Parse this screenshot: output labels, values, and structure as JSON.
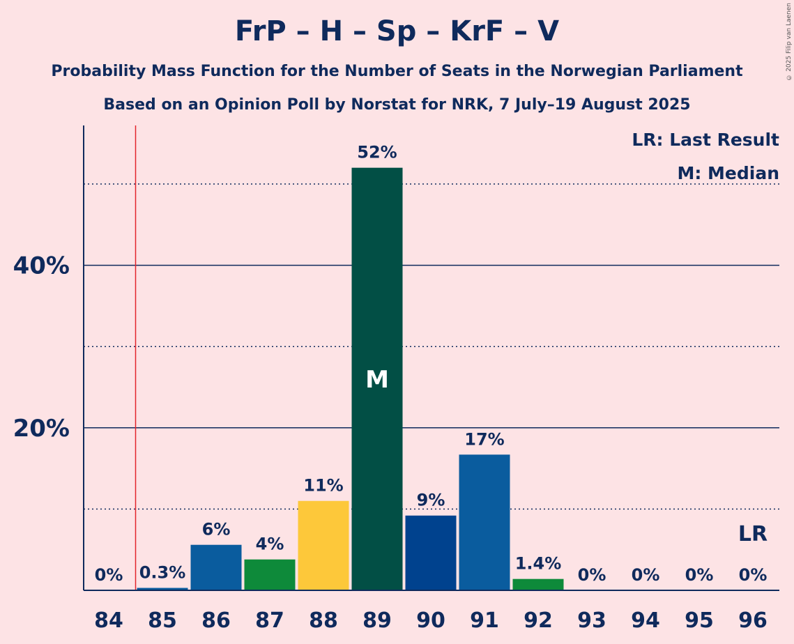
{
  "chart_data": {
    "type": "bar",
    "title": "FrP – H – Sp – KrF – V",
    "subtitle": "Probability Mass Function for the Number of Seats in the Norwegian Parliament",
    "subtitle2": "Based on an Opinion Poll by Norstat for NRK, 7 July–19 August 2025",
    "copyright": "© 2025 Filip van Laenen",
    "categories": [
      "84",
      "85",
      "86",
      "87",
      "88",
      "89",
      "90",
      "91",
      "92",
      "93",
      "94",
      "95",
      "96"
    ],
    "values": [
      0,
      0.3,
      5.6,
      3.8,
      11,
      52,
      9.2,
      16.7,
      1.4,
      0,
      0,
      0,
      0
    ],
    "value_labels": [
      "0%",
      "0.3%",
      "6%",
      "4%",
      "11%",
      "52%",
      "9%",
      "17%",
      "1.4%",
      "0%",
      "0%",
      "0%",
      "0%"
    ],
    "bar_colors": [
      "#0a5c9e",
      "#0a5c9e",
      "#0a5c9e",
      "#0e8a3a",
      "#fdc83a",
      "#024f45",
      "#00428e",
      "#0a5c9e",
      "#0e8a3a",
      "#0a5c9e",
      "#0a5c9e",
      "#0a5c9e",
      "#0a5c9e"
    ],
    "ylim": [
      0,
      56.5
    ],
    "y_ticks": [
      20,
      40
    ],
    "y_tick_labels": [
      "20%",
      "40%"
    ],
    "dotted_gridlines": [
      10,
      30,
      50
    ],
    "median_index": 5,
    "median_marker": "M",
    "last_result_category": "84.5",
    "last_result_label": "LR",
    "legend": {
      "lr": "LR: Last Result",
      "m": "M: Median",
      "placement": "top-right"
    },
    "colors": {
      "background": "#fde3e5",
      "text": "#0f2a5c",
      "last_result_line": "#e3242b"
    }
  }
}
